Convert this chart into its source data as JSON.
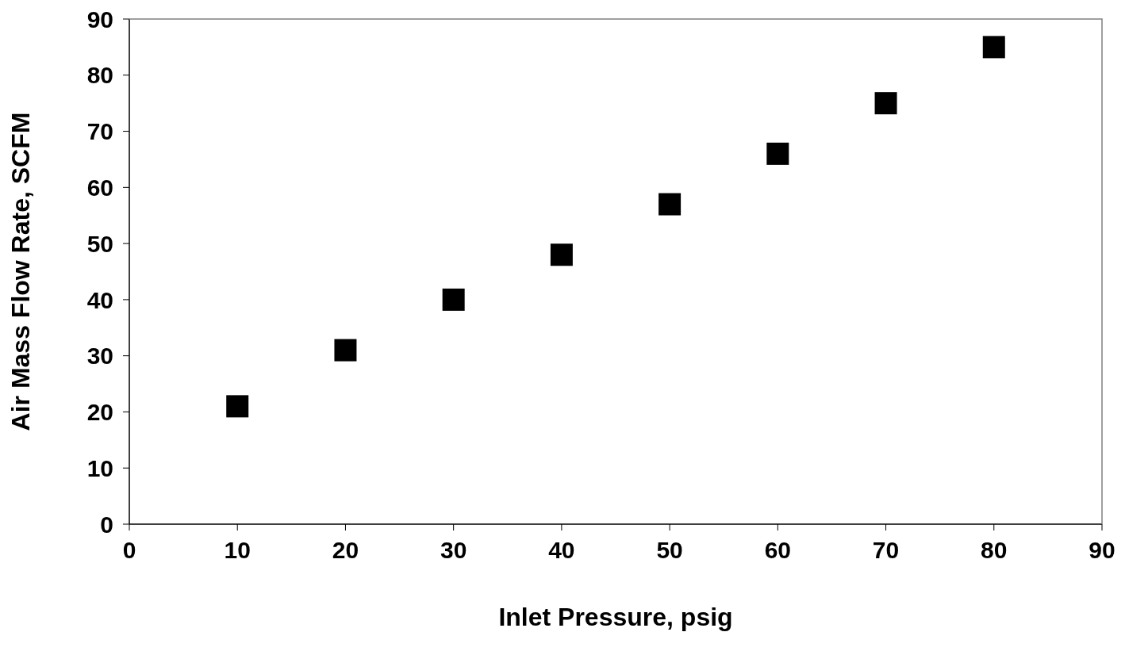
{
  "chart_data": {
    "type": "scatter",
    "xlabel": "Inlet Pressure, psig",
    "ylabel": "Air Mass Flow Rate, SCFM",
    "x": [
      10,
      20,
      30,
      40,
      50,
      60,
      70,
      80
    ],
    "series": [
      {
        "color": "#000000",
        "values": [
          21,
          31,
          40,
          48,
          57,
          66,
          75,
          85
        ]
      }
    ],
    "xlim": [
      0,
      90
    ],
    "xticks": [
      0,
      10,
      20,
      30,
      40,
      50,
      60,
      70,
      80,
      90
    ],
    "ylim": [
      0,
      90
    ],
    "yticks": [
      0,
      10,
      20,
      30,
      40,
      50,
      60,
      70,
      80,
      90
    ],
    "grid": false,
    "legend": false,
    "marker": "square"
  }
}
